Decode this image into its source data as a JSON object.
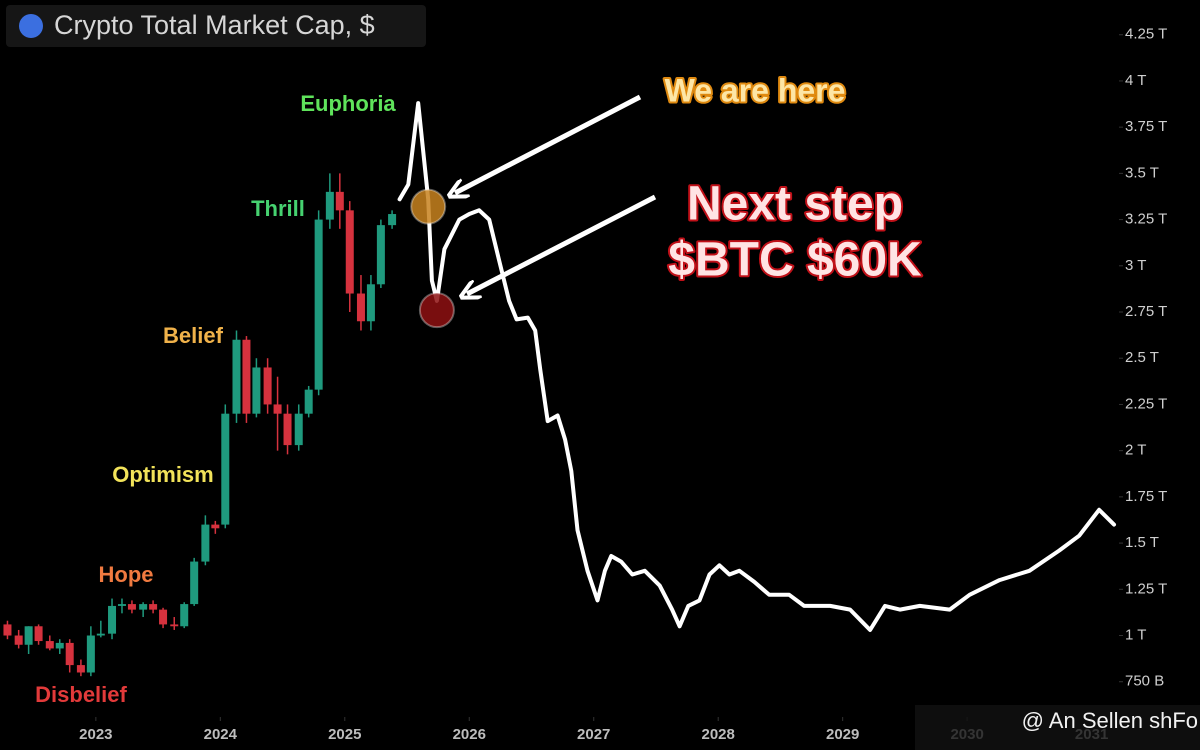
{
  "chart_data": {
    "type": "candlestick",
    "title": "Crypto Total Market Cap, $",
    "watermark": "@ An Sellen shFo",
    "xlim": [
      2022.23,
      2031.22
    ],
    "xticks": [
      2023,
      2024,
      2025,
      2026,
      2027,
      2028,
      2029,
      2030,
      2031
    ],
    "ylim": [
      0.57,
      4.4
    ],
    "yticks": [
      {
        "value": 0.75,
        "label": "750 B"
      },
      {
        "value": 1,
        "label": "1 T"
      },
      {
        "value": 1.25,
        "label": "1.25 T"
      },
      {
        "value": 1.5,
        "label": "1.5 T"
      },
      {
        "value": 1.75,
        "label": "1.75 T"
      },
      {
        "value": 2,
        "label": "2 T"
      },
      {
        "value": 2.25,
        "label": "2.25 T"
      },
      {
        "value": 2.5,
        "label": "2.5 T"
      },
      {
        "value": 2.75,
        "label": "2.75 T"
      },
      {
        "value": 3,
        "label": "3 T"
      },
      {
        "value": 3.25,
        "label": "3.25 T"
      },
      {
        "value": 3.5,
        "label": "3.5 T"
      },
      {
        "value": 3.75,
        "label": "3.75 T"
      },
      {
        "value": 4,
        "label": "4 T"
      },
      {
        "value": 4.25,
        "label": "4.25 T"
      }
    ],
    "grid": false,
    "up_color": "#1f9a7e",
    "down_color": "#d6323e",
    "candles": {
      "x": [
        2022.29,
        2022.38,
        2022.46,
        2022.54,
        2022.63,
        2022.71,
        2022.79,
        2022.88,
        2022.96,
        2023.04,
        2023.13,
        2023.21,
        2023.29,
        2023.38,
        2023.46,
        2023.54,
        2023.63,
        2023.71,
        2023.79,
        2023.88,
        2023.96,
        2024.04,
        2024.13,
        2024.21,
        2024.29,
        2024.38,
        2024.46,
        2024.54,
        2024.63,
        2024.71,
        2024.79,
        2024.88,
        2024.96,
        2025.04,
        2025.13,
        2025.21,
        2025.29,
        2025.38
      ],
      "open": [
        1.06,
        1.0,
        0.95,
        1.05,
        0.97,
        0.93,
        0.96,
        0.84,
        0.8,
        1.0,
        1.01,
        1.16,
        1.17,
        1.14,
        1.17,
        1.14,
        1.06,
        1.05,
        1.17,
        1.4,
        1.6,
        1.6,
        2.2,
        2.6,
        2.2,
        2.45,
        2.25,
        2.2,
        2.03,
        2.2,
        2.33,
        3.25,
        3.4,
        3.3,
        2.85,
        2.7,
        2.9,
        3.22
      ],
      "high": [
        1.08,
        1.03,
        1.05,
        1.06,
        1.0,
        0.98,
        0.98,
        0.87,
        1.05,
        1.08,
        1.2,
        1.2,
        1.19,
        1.18,
        1.19,
        1.15,
        1.1,
        1.18,
        1.42,
        1.65,
        1.62,
        2.25,
        2.65,
        2.62,
        2.5,
        2.5,
        2.4,
        2.25,
        2.25,
        2.35,
        3.3,
        3.5,
        3.5,
        3.35,
        2.95,
        2.95,
        3.25,
        3.3
      ],
      "low": [
        0.98,
        0.93,
        0.9,
        0.95,
        0.92,
        0.9,
        0.8,
        0.78,
        0.78,
        0.99,
        0.98,
        1.12,
        1.12,
        1.1,
        1.12,
        1.04,
        1.03,
        1.04,
        1.16,
        1.38,
        1.55,
        1.58,
        2.15,
        2.15,
        2.18,
        2.2,
        2.0,
        1.98,
        2.0,
        2.18,
        2.3,
        3.2,
        3.2,
        2.75,
        2.65,
        2.65,
        2.88,
        3.2
      ],
      "close": [
        1.0,
        0.95,
        1.05,
        0.97,
        0.93,
        0.96,
        0.84,
        0.8,
        1.0,
        1.01,
        1.16,
        1.17,
        1.14,
        1.17,
        1.14,
        1.06,
        1.05,
        1.17,
        1.4,
        1.6,
        1.58,
        2.2,
        2.6,
        2.2,
        2.45,
        2.25,
        2.2,
        2.03,
        2.2,
        2.33,
        3.25,
        3.4,
        3.3,
        2.85,
        2.7,
        2.9,
        3.22,
        3.28
      ]
    },
    "projection": {
      "color": "#ffffff",
      "x": [
        2025.44,
        2025.51,
        2025.59,
        2025.67,
        2025.7,
        2025.74,
        2025.8,
        2025.92,
        2026.0,
        2026.08,
        2026.16,
        2026.24,
        2026.32,
        2026.38,
        2026.47,
        2026.53,
        2026.57,
        2026.63,
        2026.71,
        2026.77,
        2026.82,
        2026.87,
        2026.95,
        2027.03,
        2027.09,
        2027.14,
        2027.22,
        2027.31,
        2027.41,
        2027.53,
        2027.63,
        2027.69,
        2027.76,
        2027.85,
        2027.93,
        2028.01,
        2028.09,
        2028.17,
        2028.29,
        2028.41,
        2028.57,
        2028.69,
        2028.9,
        2029.06,
        2029.22,
        2029.34,
        2029.46,
        2029.62,
        2029.86,
        2030.02,
        2030.26,
        2030.5,
        2030.74,
        2030.9,
        2031.06,
        2031.18
      ],
      "values": [
        3.36,
        3.44,
        3.88,
        3.36,
        2.92,
        2.81,
        3.09,
        3.25,
        3.28,
        3.3,
        3.25,
        3.03,
        2.81,
        2.71,
        2.72,
        2.65,
        2.44,
        2.16,
        2.19,
        2.06,
        1.89,
        1.57,
        1.35,
        1.19,
        1.35,
        1.43,
        1.4,
        1.33,
        1.35,
        1.27,
        1.14,
        1.05,
        1.16,
        1.19,
        1.33,
        1.38,
        1.33,
        1.35,
        1.29,
        1.22,
        1.22,
        1.16,
        1.16,
        1.14,
        1.03,
        1.16,
        1.14,
        1.16,
        1.14,
        1.22,
        1.3,
        1.35,
        1.46,
        1.54,
        1.68,
        1.6
      ]
    },
    "markers": [
      {
        "x": 2025.67,
        "value": 3.32,
        "color": "#c8821f"
      },
      {
        "x": 2025.74,
        "value": 2.76,
        "color": "#8e1012"
      }
    ],
    "phases": [
      {
        "label": "Euphoria",
        "color": "#5fe35b"
      },
      {
        "label": "Thrill",
        "color": "#46d270"
      },
      {
        "label": "Belief",
        "color": "#f0b24a"
      },
      {
        "label": "Optimism",
        "color": "#f2e35a"
      },
      {
        "label": "Hope",
        "color": "#f07a40"
      },
      {
        "label": "Disbelief",
        "color": "#e23a3a"
      }
    ],
    "annotations": [
      {
        "text": "We are here",
        "color": "#fde6a6",
        "glow": "#e08a10"
      },
      {
        "text": "Next step",
        "color": "#ffe4e4",
        "glow": "#c01018"
      },
      {
        "text": "$BTC $60K",
        "color": "#ffe4e4",
        "glow": "#c01018"
      }
    ]
  }
}
